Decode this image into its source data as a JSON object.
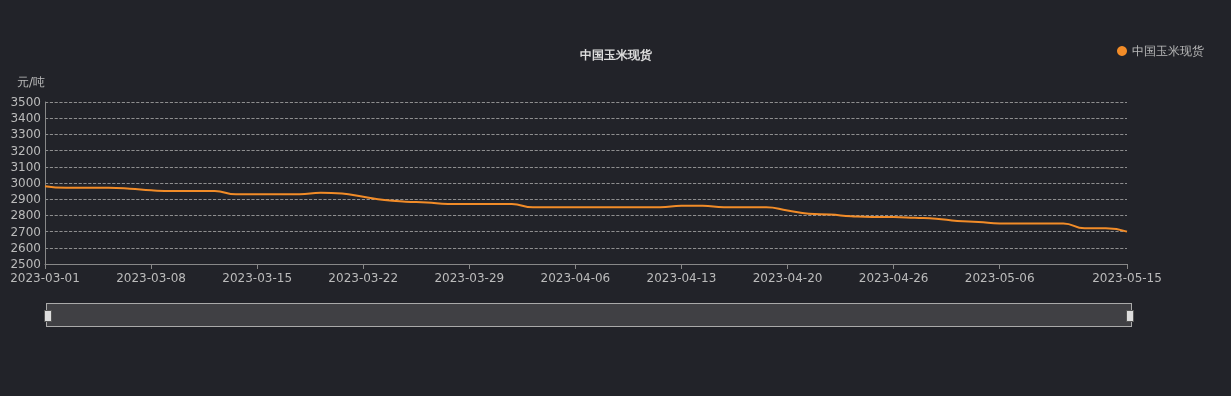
{
  "chart_data": {
    "type": "line",
    "title": "中国玉米现货",
    "ylabel": "元/吨",
    "categories": [
      "2023-03-01",
      null,
      null,
      null,
      null,
      "2023-03-08",
      null,
      null,
      null,
      null,
      "2023-03-15",
      null,
      null,
      null,
      null,
      "2023-03-22",
      null,
      null,
      null,
      null,
      "2023-03-29",
      null,
      null,
      null,
      null,
      "2023-04-06",
      null,
      null,
      null,
      null,
      "2023-04-13",
      null,
      null,
      null,
      null,
      "2023-04-20",
      null,
      null,
      null,
      null,
      "2023-04-26",
      null,
      null,
      null,
      null,
      "2023-05-06",
      null,
      null,
      null,
      null,
      null,
      "2023-05-15"
    ],
    "series": [
      {
        "name": "中国玉米现货",
        "color": "#f28c28",
        "values": [
          2980,
          2970,
          2970,
          2970,
          2965,
          2955,
          2950,
          2950,
          2950,
          2930,
          2930,
          2930,
          2930,
          2940,
          2935,
          2915,
          2895,
          2885,
          2880,
          2870,
          2870,
          2870,
          2870,
          2850,
          2850,
          2850,
          2850,
          2850,
          2850,
          2850,
          2860,
          2860,
          2850,
          2850,
          2850,
          2830,
          2810,
          2805,
          2795,
          2790,
          2790,
          2785,
          2780,
          2765,
          2760,
          2750,
          2750,
          2750,
          2750,
          2720,
          2720,
          2700
        ]
      }
    ],
    "ylim": [
      2500,
      3500
    ],
    "yticks": [
      2500,
      2600,
      2700,
      2800,
      2900,
      3000,
      3100,
      3200,
      3300,
      3400,
      3500
    ],
    "grid": "y",
    "legend": "top right",
    "marker": "none",
    "line_style": "solid"
  }
}
